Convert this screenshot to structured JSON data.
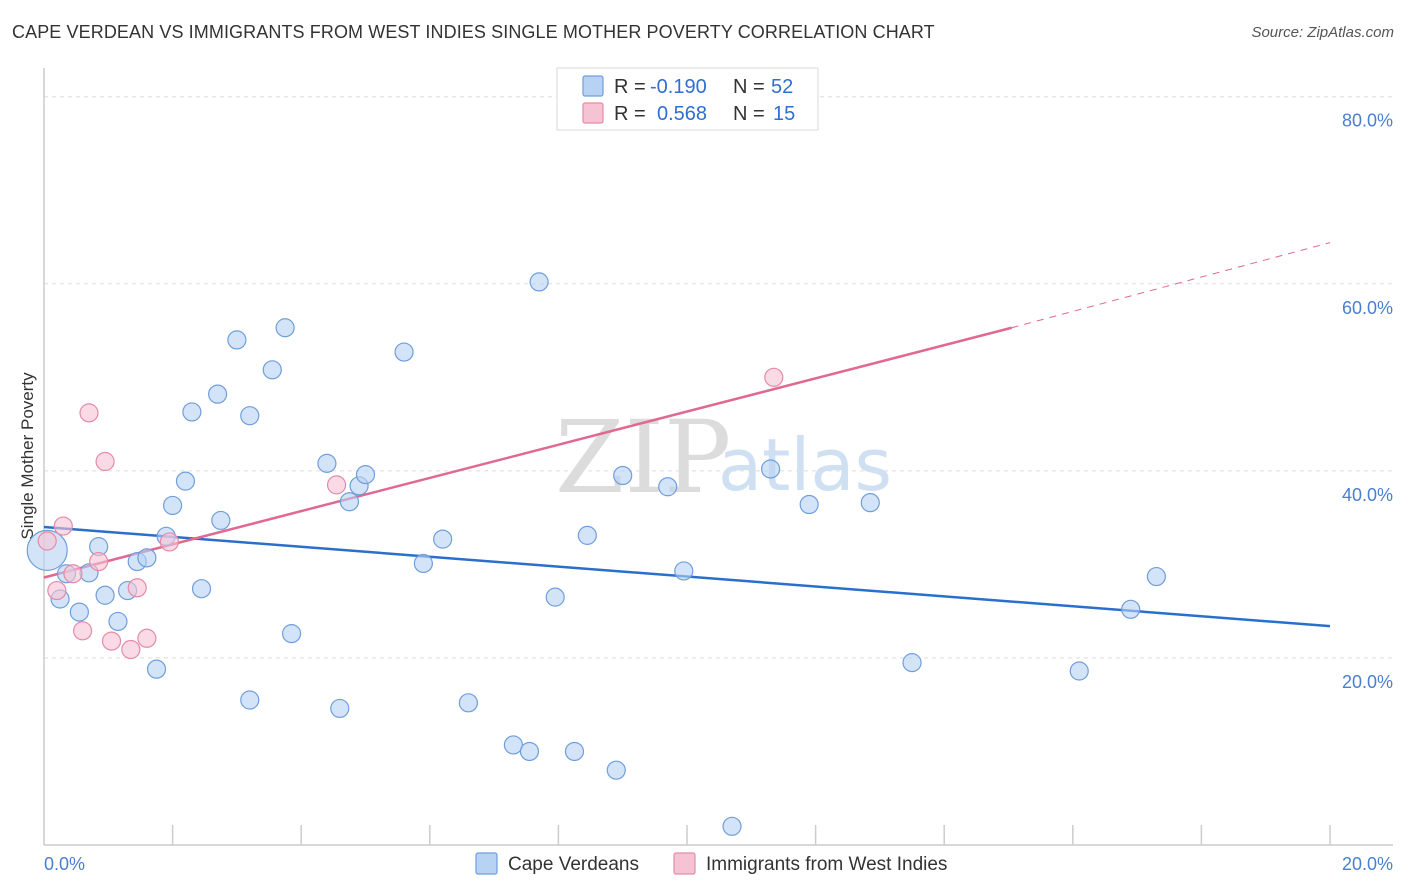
{
  "title": "CAPE VERDEAN VS IMMIGRANTS FROM WEST INDIES SINGLE MOTHER POVERTY CORRELATION CHART",
  "source": "Source: ZipAtlas.com",
  "watermark": {
    "zip": "ZIP",
    "atlas": "atlas"
  },
  "colors": {
    "blue_fill": "#b8d2f4",
    "blue_stroke": "#6f9edb",
    "blue_line": "#2a6fcc",
    "pink_fill": "#f6c3d4",
    "pink_stroke": "#e58aa9",
    "pink_line": "#e06892",
    "tick_text": "#4a7fd0",
    "grid": "#dddddd"
  },
  "legend": {
    "r_label": "R =",
    "n_label": "N =",
    "rows": [
      {
        "series": "Cape Verdeans",
        "r": "-0.190",
        "n": "52"
      },
      {
        "series": "Immigrants from West Indies",
        "r": "0.568",
        "n": "15"
      }
    ]
  },
  "chart_data": {
    "type": "scatter",
    "title": "CAPE VERDEAN VS IMMIGRANTS FROM WEST INDIES SINGLE MOTHER POVERTY CORRELATION CHART",
    "xlabel": "",
    "ylabel": "Single Mother Poverty",
    "xlim": [
      0,
      20
    ],
    "ylim": [
      0,
      82
    ],
    "x_tick_labels": [
      "0.0%",
      "20.0%"
    ],
    "y_ticks": [
      20,
      40,
      60,
      80
    ],
    "y_tick_labels": [
      "20.0%",
      "40.0%",
      "60.0%",
      "80.0%"
    ],
    "grid": true,
    "series": [
      {
        "name": "Cape Verdeans",
        "color": "#6f9edb",
        "points": [
          [
            0.05,
            31.5
          ],
          [
            0.25,
            26.3
          ],
          [
            0.35,
            29.0
          ],
          [
            0.55,
            24.9
          ],
          [
            0.7,
            29.1
          ],
          [
            0.85,
            31.9
          ],
          [
            0.95,
            26.7
          ],
          [
            1.15,
            23.9
          ],
          [
            1.3,
            27.2
          ],
          [
            1.45,
            30.3
          ],
          [
            1.6,
            30.7
          ],
          [
            1.75,
            18.8
          ],
          [
            1.9,
            33.0
          ],
          [
            2.0,
            36.3
          ],
          [
            2.2,
            38.9
          ],
          [
            2.3,
            46.3
          ],
          [
            2.45,
            27.4
          ],
          [
            2.7,
            48.2
          ],
          [
            2.75,
            34.7
          ],
          [
            3.0,
            54.0
          ],
          [
            3.2,
            15.5
          ],
          [
            3.2,
            45.9
          ],
          [
            3.55,
            50.8
          ],
          [
            3.75,
            55.3
          ],
          [
            3.85,
            22.6
          ],
          [
            4.4,
            40.8
          ],
          [
            4.6,
            14.6
          ],
          [
            4.75,
            36.7
          ],
          [
            4.9,
            38.4
          ],
          [
            5.0,
            39.6
          ],
          [
            5.6,
            52.7
          ],
          [
            5.9,
            30.1
          ],
          [
            6.2,
            32.7
          ],
          [
            6.6,
            15.2
          ],
          [
            7.3,
            10.7
          ],
          [
            7.55,
            10.0
          ],
          [
            7.7,
            60.2
          ],
          [
            7.95,
            26.5
          ],
          [
            8.25,
            10.0
          ],
          [
            8.45,
            33.1
          ],
          [
            8.9,
            8.0
          ],
          [
            9.0,
            39.5
          ],
          [
            9.7,
            38.3
          ],
          [
            9.95,
            29.3
          ],
          [
            10.7,
            2.0
          ],
          [
            11.3,
            40.2
          ],
          [
            11.9,
            36.4
          ],
          [
            12.85,
            36.6
          ],
          [
            13.5,
            19.5
          ],
          [
            16.1,
            18.6
          ],
          [
            16.9,
            25.2
          ],
          [
            17.3,
            28.7
          ]
        ]
      },
      {
        "name": "Immigrants from West Indies",
        "color": "#e58aa9",
        "points": [
          [
            0.05,
            32.5
          ],
          [
            0.2,
            27.2
          ],
          [
            0.3,
            34.1
          ],
          [
            0.45,
            29.0
          ],
          [
            0.6,
            22.9
          ],
          [
            0.7,
            46.2
          ],
          [
            0.85,
            30.3
          ],
          [
            0.95,
            41.0
          ],
          [
            1.05,
            21.8
          ],
          [
            1.35,
            20.9
          ],
          [
            1.45,
            27.5
          ],
          [
            1.6,
            22.1
          ],
          [
            1.95,
            32.4
          ],
          [
            4.55,
            38.5
          ],
          [
            11.35,
            50.0
          ]
        ]
      }
    ],
    "trend_lines": [
      {
        "series": "Cape Verdeans",
        "from": [
          0,
          34.0
        ],
        "to": [
          20,
          23.4
        ],
        "style": "solid"
      },
      {
        "series": "Immigrants from West Indies",
        "from": [
          0,
          28.6
        ],
        "to": [
          15.05,
          55.3
        ],
        "style": "solid"
      },
      {
        "series": "Immigrants from West Indies",
        "from": [
          15.05,
          55.3
        ],
        "to": [
          20,
          64.4
        ],
        "style": "dashed"
      }
    ]
  }
}
